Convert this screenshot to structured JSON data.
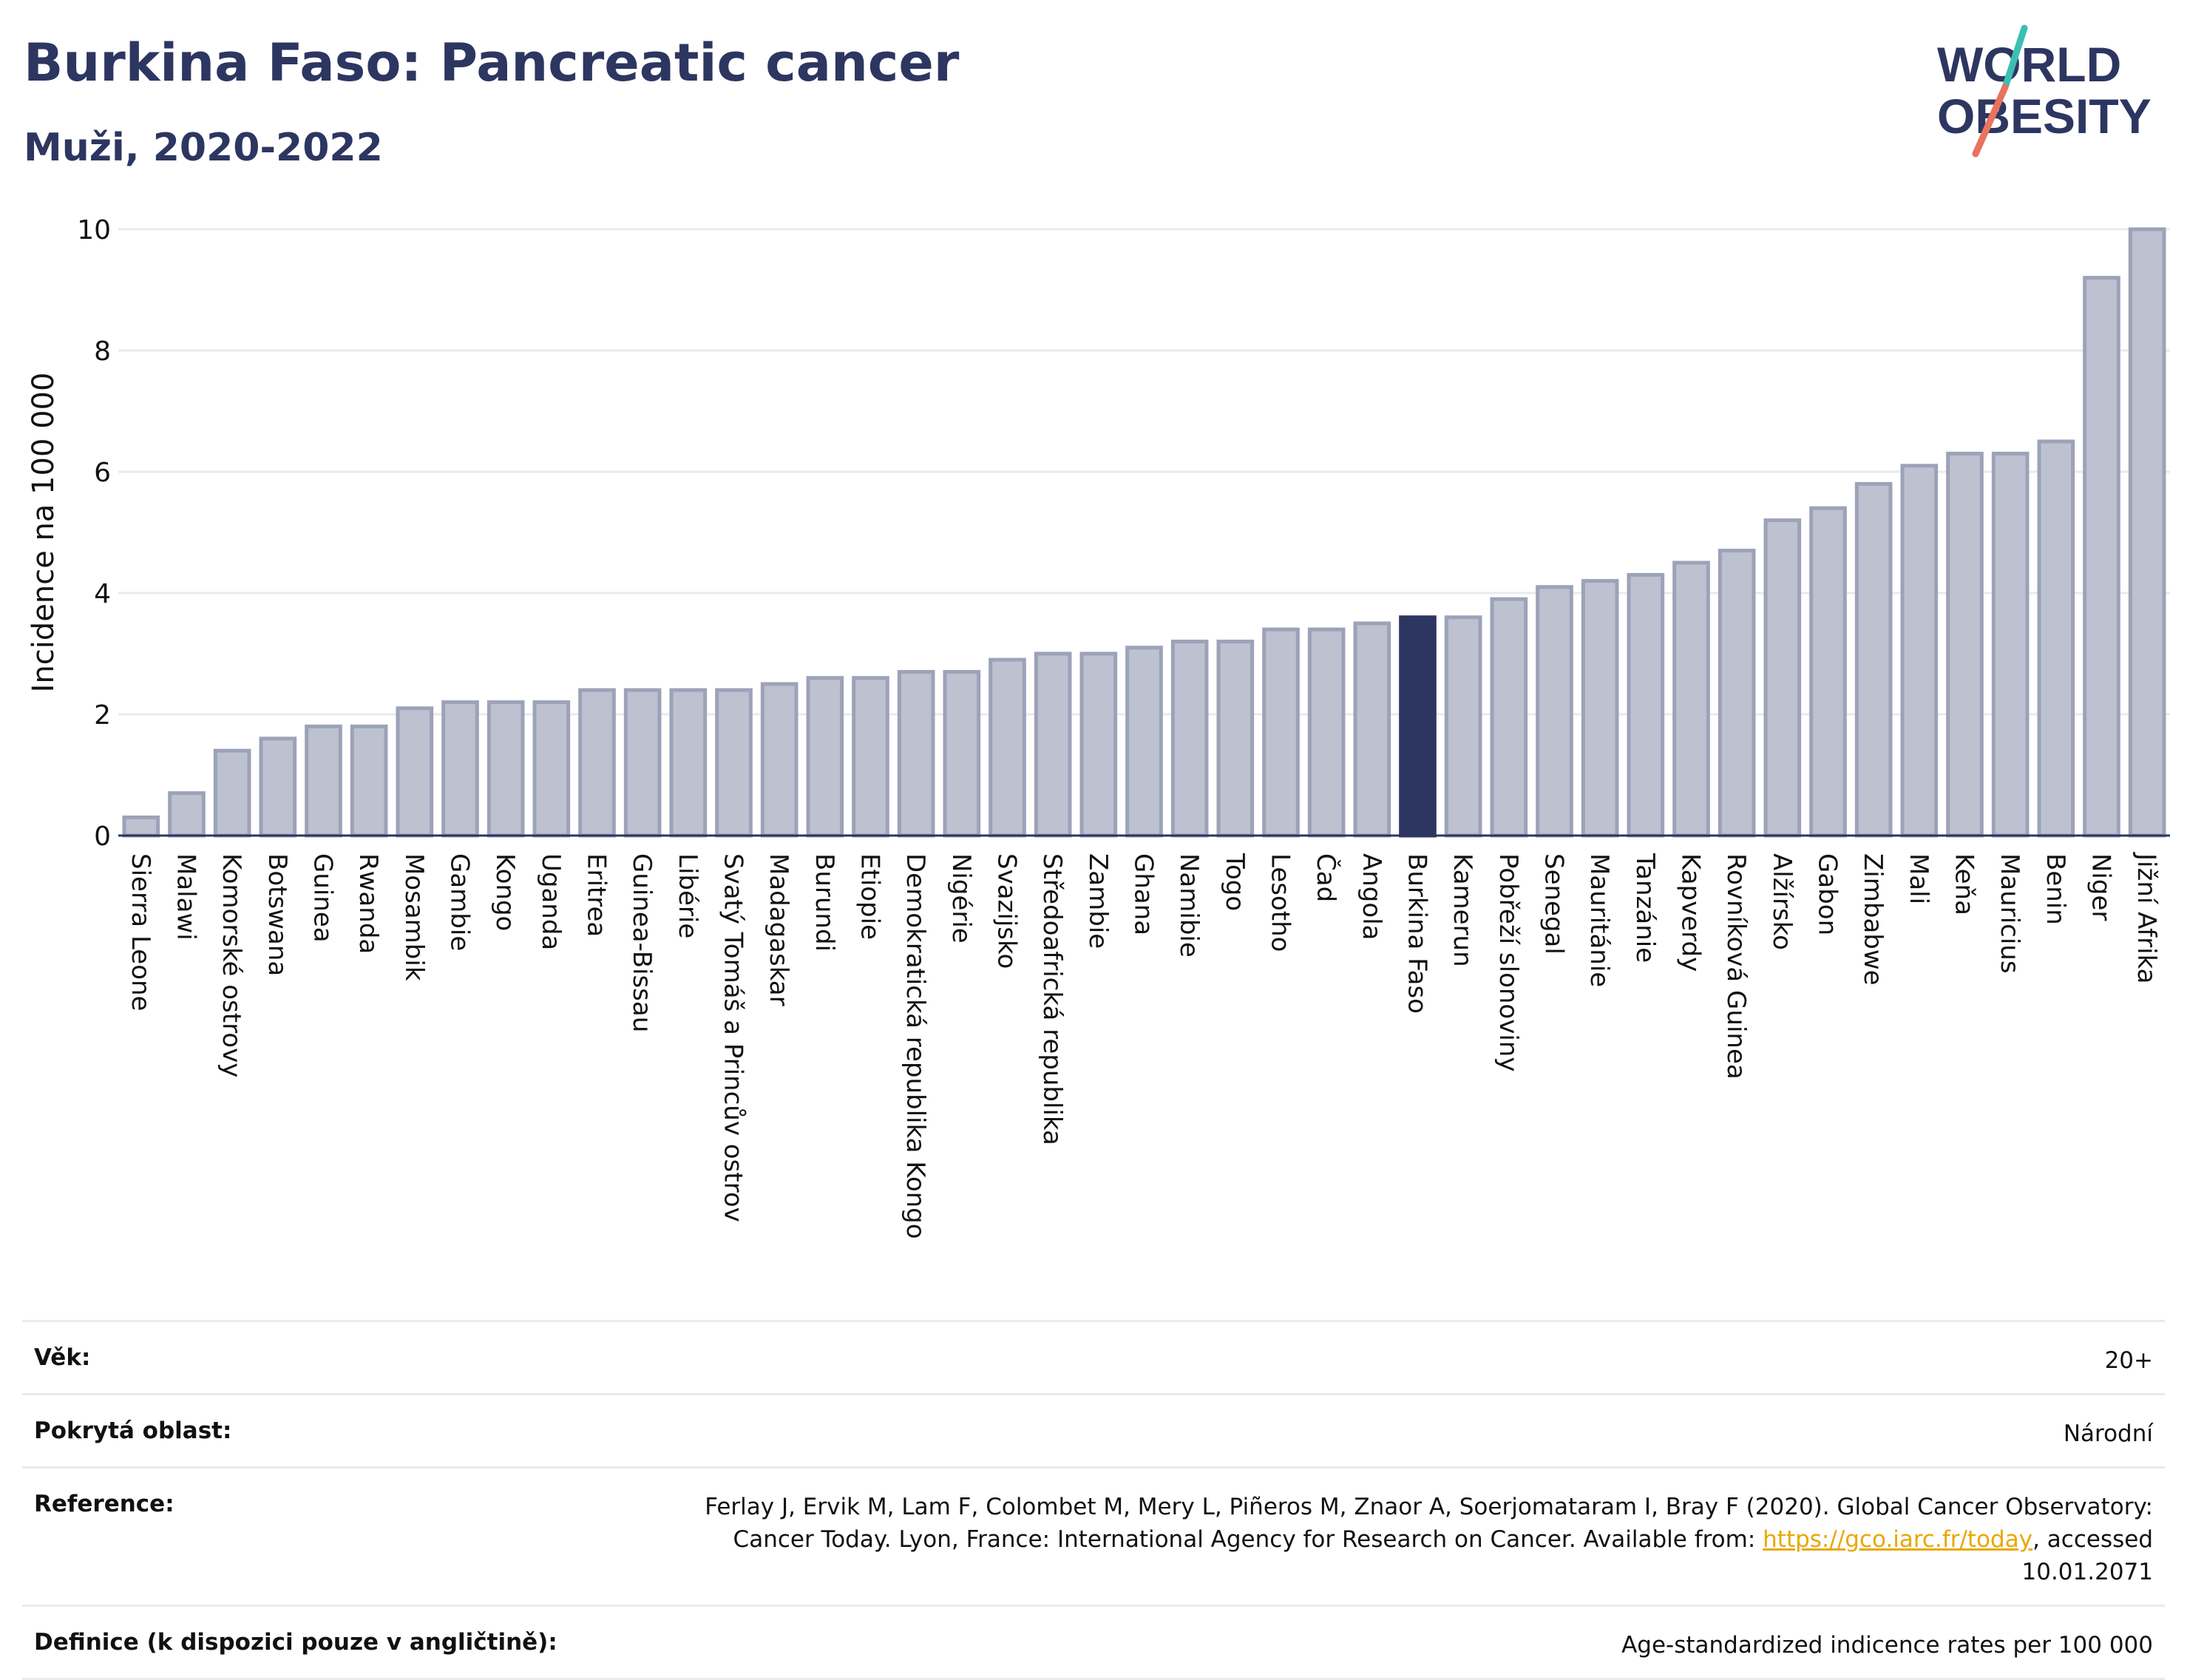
{
  "title": "Burkina Faso: Pancreatic cancer",
  "subtitle": "Muži, 2020-2022",
  "logo": {
    "line1": "WORLD",
    "line2": "OBESITY",
    "accent_teal": "#3cbfb1",
    "accent_red": "#e8735f",
    "text_color": "#2d3661"
  },
  "colors": {
    "bar": "#bdc1d0",
    "bar_edge": "#9ca2b8",
    "highlight": "#2d3661",
    "grid": "#e9eaee",
    "axis": "#2d3661"
  },
  "chart_data": {
    "type": "bar",
    "title": "Burkina Faso: Pancreatic cancer",
    "subtitle": "Muži, 2020-2022",
    "xlabel": "",
    "ylabel": "Incidence na 100 000",
    "ylim": [
      0,
      10
    ],
    "yticks": [
      0,
      2,
      4,
      6,
      8,
      10
    ],
    "grid": true,
    "highlight": "Burkina Faso",
    "categories": [
      "Sierra Leone",
      "Malawi",
      "Komorské ostrovy",
      "Botswana",
      "Guinea",
      "Rwanda",
      "Mosambik",
      "Gambie",
      "Kongo",
      "Uganda",
      "Eritrea",
      "Guinea-Bissau",
      "Libérie",
      "Svatý Tomáš a Princův ostrov",
      "Madagaskar",
      "Burundi",
      "Etiopie",
      "Demokratická republika Kongo",
      "Nigérie",
      "Svazijsko",
      "Středoafrická republika",
      "Zambie",
      "Ghana",
      "Namibie",
      "Togo",
      "Lesotho",
      "Čad",
      "Angola",
      "Burkina Faso",
      "Kamerun",
      "Pobřeží slonoviny",
      "Senegal",
      "Mauritánie",
      "Tanzánie",
      "Kapverdy",
      "Rovníková Guinea",
      "Alžírsko",
      "Gabon",
      "Zimbabwe",
      "Mali",
      "Keňa",
      "Mauricius",
      "Benin",
      "Niger",
      "Jižní Afrika"
    ],
    "values": [
      0.3,
      0.7,
      1.4,
      1.6,
      1.8,
      1.8,
      2.1,
      2.2,
      2.2,
      2.2,
      2.4,
      2.4,
      2.4,
      2.4,
      2.5,
      2.6,
      2.6,
      2.7,
      2.7,
      2.9,
      3.0,
      3.0,
      3.1,
      3.2,
      3.2,
      3.4,
      3.4,
      3.5,
      3.6,
      3.6,
      3.9,
      4.1,
      4.2,
      4.3,
      4.5,
      4.7,
      5.2,
      5.4,
      5.8,
      6.1,
      6.3,
      6.3,
      6.5,
      9.2,
      10.0
    ]
  },
  "info": {
    "rows": [
      {
        "label": "Věk:",
        "value": "20+"
      },
      {
        "label": "Pokrytá oblast:",
        "value": "Národní"
      },
      {
        "label": "Reference:",
        "value_before": "Ferlay J, Ervik M, Lam F, Colombet M, Mery L, Piñeros M, Znaor A, Soerjomataram I, Bray F (2020). Global Cancer Observatory: Cancer Today. Lyon, France: International Agency for Research on Cancer. Available from: ",
        "link": "https://gco.iarc.fr/today",
        "value_after": ", accessed 10.01.2071"
      },
      {
        "label": "Definice (k dispozici pouze v angličtině):",
        "value": "Age-standardized indicence rates per 100 000"
      }
    ]
  }
}
